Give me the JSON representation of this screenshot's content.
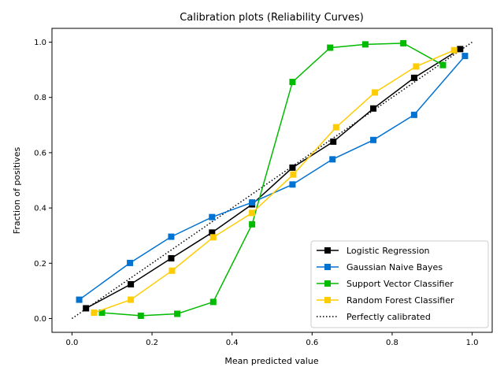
{
  "chart_data": {
    "type": "line",
    "title": "Calibration plots (Reliability Curves)",
    "xlabel": "Mean predicted value",
    "ylabel": "Fraction of positives",
    "xlim": [
      -0.05,
      1.05
    ],
    "ylim": [
      -0.05,
      1.05
    ],
    "xticks": [
      "0.0",
      "0.2",
      "0.4",
      "0.6",
      "0.8",
      "1.0"
    ],
    "yticks": [
      "0.0",
      "0.2",
      "0.4",
      "0.6",
      "0.8",
      "1.0"
    ],
    "grid": false,
    "legend_position": "lower-right",
    "series": [
      {
        "name": "Logistic Regression",
        "color": "#000000",
        "marker": "square",
        "line": "solid",
        "points": [
          [
            0.035,
            0.037
          ],
          [
            0.147,
            0.124
          ],
          [
            0.248,
            0.218
          ],
          [
            0.35,
            0.311
          ],
          [
            0.45,
            0.413
          ],
          [
            0.551,
            0.546
          ],
          [
            0.653,
            0.64
          ],
          [
            0.753,
            0.76
          ],
          [
            0.855,
            0.871
          ],
          [
            0.97,
            0.975
          ]
        ]
      },
      {
        "name": "Gaussian Naive Bayes",
        "color": "#0072d2",
        "marker": "square",
        "line": "solid",
        "points": [
          [
            0.018,
            0.068
          ],
          [
            0.145,
            0.201
          ],
          [
            0.248,
            0.296
          ],
          [
            0.35,
            0.367
          ],
          [
            0.45,
            0.42
          ],
          [
            0.551,
            0.485
          ],
          [
            0.651,
            0.576
          ],
          [
            0.753,
            0.646
          ],
          [
            0.855,
            0.737
          ],
          [
            0.982,
            0.95
          ]
        ]
      },
      {
        "name": "Support Vector Classifier",
        "color": "#00bb00",
        "marker": "square",
        "line": "solid",
        "points": [
          [
            0.075,
            0.021
          ],
          [
            0.172,
            0.01
          ],
          [
            0.263,
            0.017
          ],
          [
            0.353,
            0.06
          ],
          [
            0.45,
            0.341
          ],
          [
            0.551,
            0.856
          ],
          [
            0.645,
            0.98
          ],
          [
            0.733,
            0.992
          ],
          [
            0.828,
            0.996
          ],
          [
            0.927,
            0.917
          ]
        ]
      },
      {
        "name": "Random Forest Classifier",
        "color": "#ffcc00",
        "marker": "square",
        "line": "solid",
        "points": [
          [
            0.055,
            0.021
          ],
          [
            0.147,
            0.068
          ],
          [
            0.25,
            0.173
          ],
          [
            0.353,
            0.294
          ],
          [
            0.45,
            0.382
          ],
          [
            0.553,
            0.521
          ],
          [
            0.66,
            0.692
          ],
          [
            0.757,
            0.818
          ],
          [
            0.86,
            0.912
          ],
          [
            0.955,
            0.971
          ]
        ]
      },
      {
        "name": "Perfectly calibrated",
        "color": "#000000",
        "marker": "none",
        "line": "dotted",
        "points": [
          [
            0,
            0
          ],
          [
            1,
            1
          ]
        ]
      }
    ]
  }
}
